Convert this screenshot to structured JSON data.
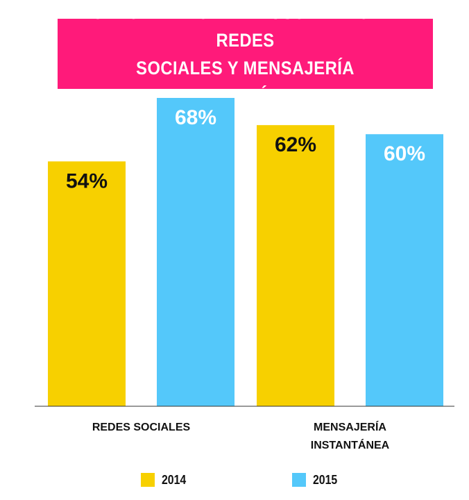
{
  "title": "CRECIMIENTO EN EL USO DIARIO DE REDES\nSOCIALES Y MENSAJERÍA INSTANTÁNEA",
  "colors": {
    "accent": "#ff1a7a",
    "series_2014": "#f7d000",
    "series_2015": "#54c8fa"
  },
  "chart_data": {
    "type": "bar",
    "title": "CRECIMIENTO EN EL USO DIARIO DE REDES SOCIALES Y MENSAJERÍA INSTANTÁNEA",
    "categories": [
      "REDES SOCIALES",
      "MENSAJERÍA\nINSTANTÁNEA"
    ],
    "series": [
      {
        "name": "2014",
        "values": [
          54,
          62
        ],
        "labels": [
          "54%",
          "62%"
        ],
        "color": "#f7d000",
        "label_color": "#111111"
      },
      {
        "name": "2015",
        "values": [
          68,
          60
        ],
        "labels": [
          "68%",
          "60%"
        ],
        "color": "#54c8fa",
        "label_color": "#ffffff"
      }
    ],
    "ylim": [
      0,
      68
    ],
    "grid": false,
    "legend_position": "bottom",
    "xlabel": "",
    "ylabel": ""
  }
}
